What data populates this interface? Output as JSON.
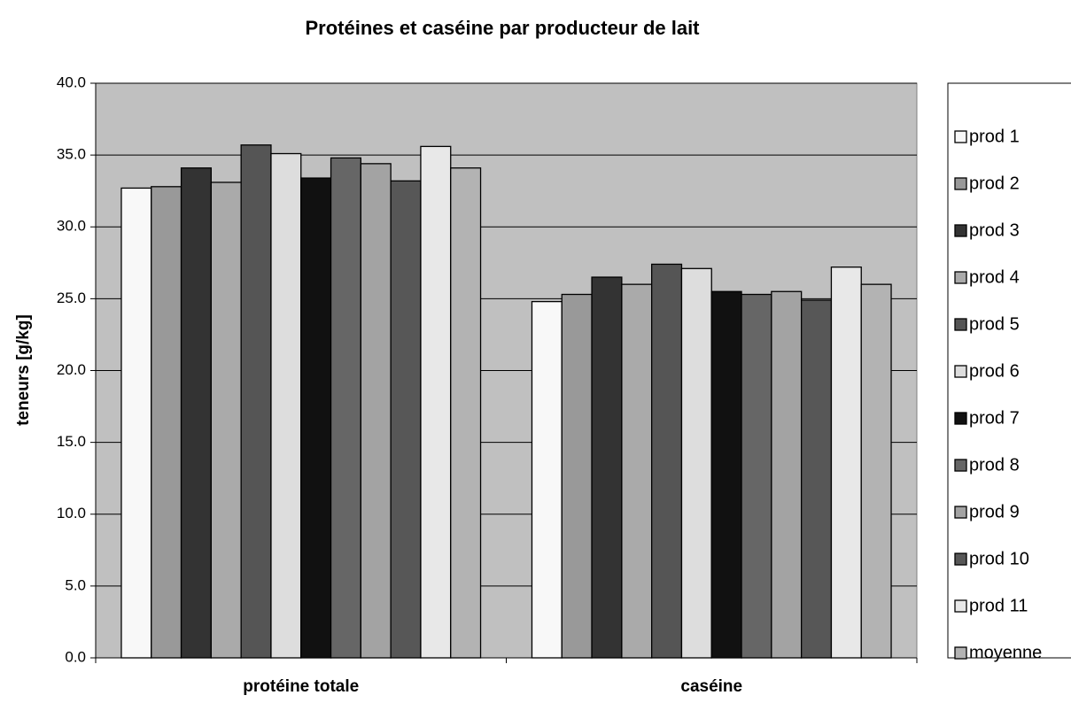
{
  "chart_data": {
    "type": "bar",
    "title": "Protéines et caséine par producteur de lait",
    "y_label": "teneurs [g/kg]",
    "categories": [
      "protéine totale",
      "caséine"
    ],
    "series": [
      {
        "name": "prod 1",
        "color": "#f8f8f8",
        "values": [
          32.7,
          24.8
        ]
      },
      {
        "name": "prod 2",
        "color": "#999999",
        "values": [
          32.8,
          25.3
        ]
      },
      {
        "name": "prod 3",
        "color": "#333333",
        "values": [
          34.1,
          26.5
        ]
      },
      {
        "name": "prod 4",
        "color": "#aaaaaa",
        "values": [
          33.1,
          26.0
        ]
      },
      {
        "name": "prod 5",
        "color": "#555555",
        "values": [
          35.7,
          27.4
        ]
      },
      {
        "name": "prod 6",
        "color": "#dddddd",
        "values": [
          35.1,
          27.1
        ]
      },
      {
        "name": "prod 7",
        "color": "#111111",
        "values": [
          33.4,
          25.5
        ]
      },
      {
        "name": "prod 8",
        "color": "#666666",
        "values": [
          34.8,
          25.3
        ]
      },
      {
        "name": "prod 9",
        "color": "#a3a3a3",
        "values": [
          34.4,
          25.5
        ]
      },
      {
        "name": "prod 10",
        "color": "#575757",
        "values": [
          33.2,
          24.9
        ]
      },
      {
        "name": "prod 11",
        "color": "#e8e8e8",
        "values": [
          35.6,
          27.2
        ]
      },
      {
        "name": "moyenne",
        "color": "#b3b3b3",
        "values": [
          34.1,
          26.0
        ]
      }
    ],
    "ylim": [
      0,
      40
    ],
    "yticks": [
      {
        "value": 0,
        "label": "0.0"
      },
      {
        "value": 5,
        "label": "5.0"
      },
      {
        "value": 10,
        "label": "10.0"
      },
      {
        "value": 15,
        "label": "15.0"
      },
      {
        "value": 20,
        "label": "20.0"
      },
      {
        "value": 25,
        "label": "25.0"
      },
      {
        "value": 30,
        "label": "30.0"
      },
      {
        "value": 35,
        "label": "35.0"
      },
      {
        "value": 40,
        "label": "40.0"
      }
    ],
    "grid": true,
    "legend": "right",
    "plot_background": "#c0c0c0"
  }
}
